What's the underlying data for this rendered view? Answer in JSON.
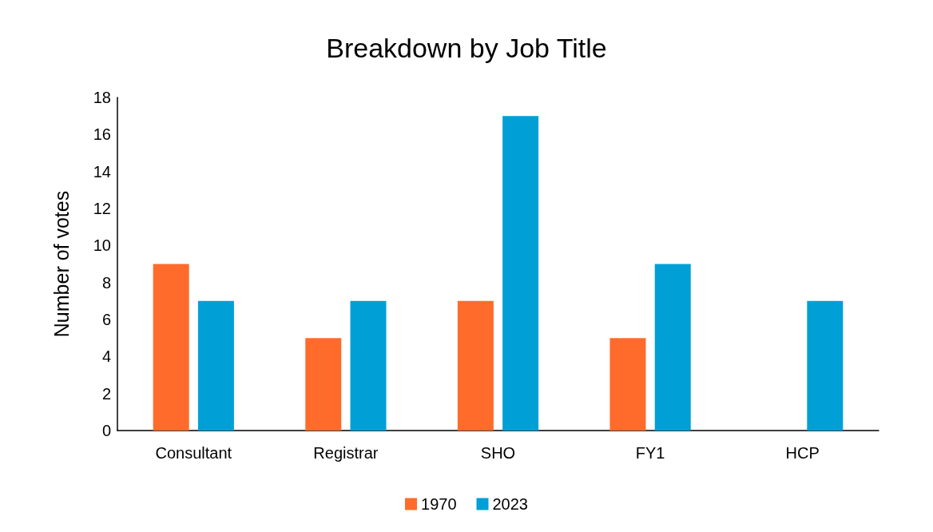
{
  "chart_data": {
    "type": "bar",
    "title": "Breakdown by Job Title",
    "ylabel": "Number of votes",
    "categories": [
      "Consultant",
      "Registrar",
      "SHO",
      "FY1",
      "HCP"
    ],
    "series": [
      {
        "name": "1970",
        "color": "#ff6b2b",
        "values": [
          9,
          5,
          7,
          5,
          0
        ]
      },
      {
        "name": "2023",
        "color": "#009fd6",
        "values": [
          7,
          7,
          17,
          9,
          7
        ]
      }
    ],
    "ylim": [
      0,
      18
    ],
    "yticks": [
      0,
      2,
      4,
      6,
      8,
      10,
      12,
      14,
      16,
      18
    ],
    "grid": false,
    "legend": "bottom"
  }
}
